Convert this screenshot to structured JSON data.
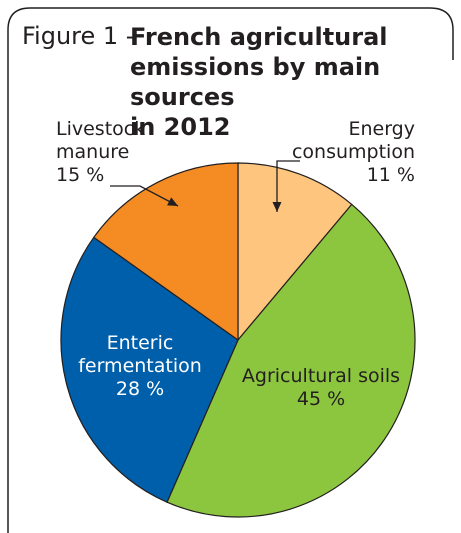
{
  "figure": {
    "label": "Figure 1 -",
    "title_lines": [
      "French agricultural",
      "emissions by main sources",
      "in 2012"
    ]
  },
  "chart_data": {
    "type": "pie",
    "title": "French agricultural emissions by main sources in 2012",
    "unit": "%",
    "slices": [
      {
        "name": "Energy consumption",
        "label_lines": [
          "Energy",
          "consumption"
        ],
        "value": 11,
        "value_label": "11 %",
        "color": "#fdc57d"
      },
      {
        "name": "Agricultural soils",
        "label_lines": [
          "Agricultural soils"
        ],
        "value": 45,
        "value_label": "45 %",
        "color": "#8cc63f"
      },
      {
        "name": "Enteric fermentation",
        "label_lines": [
          "Enteric",
          "fermentation"
        ],
        "value": 28,
        "value_label": "28 %",
        "color": "#005faa"
      },
      {
        "name": "Livestock manure",
        "label_lines": [
          "Livestock",
          "manure"
        ],
        "value": 15,
        "value_label": "15 %",
        "color": "#f58c23"
      }
    ]
  }
}
